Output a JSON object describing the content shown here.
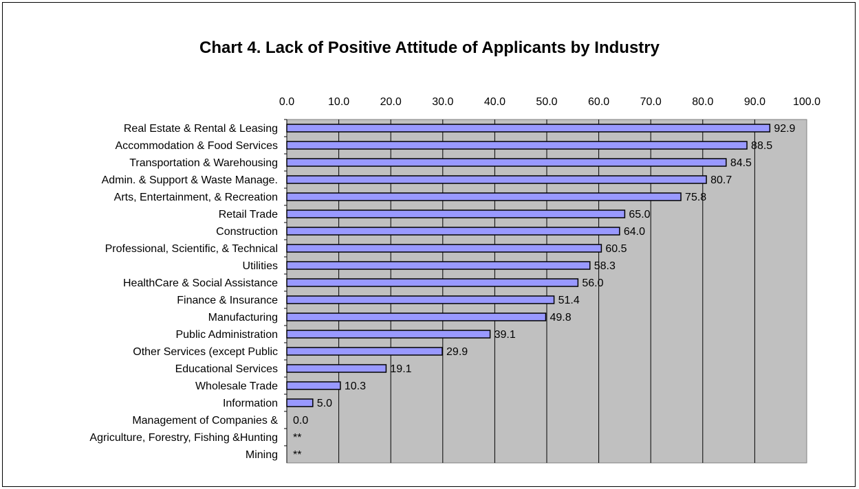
{
  "chart_data": {
    "type": "bar",
    "orientation": "horizontal",
    "title": "Chart 4.  Lack of Positive Attitude of Applicants by Industry",
    "xlim": [
      0,
      100
    ],
    "x_ticks": [
      "0.0",
      "10.0",
      "20.0",
      "30.0",
      "40.0",
      "50.0",
      "60.0",
      "70.0",
      "80.0",
      "90.0",
      "100.0"
    ],
    "x_axis_position": "top",
    "grid": true,
    "legend": "none",
    "categories": [
      "Real Estate & Rental & Leasing",
      "Accommodation & Food Services",
      "Transportation & Warehousing",
      "Admin. & Support & Waste Manage.",
      "Arts, Entertainment, & Recreation",
      "Retail Trade",
      "Construction",
      "Professional, Scientific, & Technical",
      "Utilities",
      "HealthCare & Social Assistance",
      "Finance & Insurance",
      "Manufacturing",
      "Public Administration",
      "Other Services (except Public",
      "Educational Services",
      "Wholesale Trade",
      "Information",
      "Management of Companies &",
      "Agriculture, Forestry, Fishing &Hunting",
      "Mining"
    ],
    "values": [
      92.9,
      88.5,
      84.5,
      80.7,
      75.8,
      65.0,
      64.0,
      60.5,
      58.3,
      56.0,
      51.4,
      49.8,
      39.1,
      29.9,
      19.1,
      10.3,
      5.0,
      0.0,
      null,
      null
    ],
    "data_labels": [
      "92.9",
      "88.5",
      "84.5",
      "80.7",
      "75.8",
      "65.0",
      "64.0",
      "60.5",
      "58.3",
      "56.0",
      "51.4",
      "49.8",
      "39.1",
      "29.9",
      "19.1",
      "10.3",
      "5.0",
      "0.0",
      "**",
      "**"
    ],
    "colors": {
      "bar_fill": "#9999ff",
      "bar_stroke": "#000000",
      "plot_background": "#c0c0c0",
      "gridline": "#000000"
    }
  }
}
